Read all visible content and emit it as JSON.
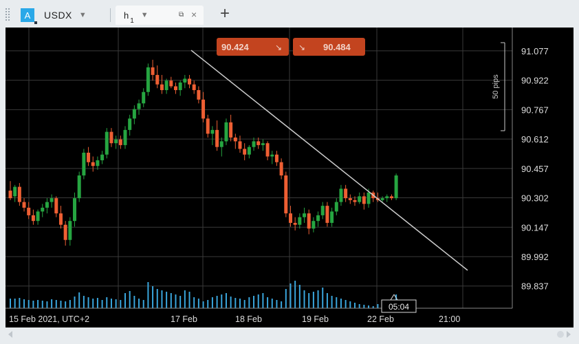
{
  "tabs": {
    "instrument_badge": "A",
    "instrument": "USDX",
    "timeframe": "h",
    "timeframe_sub": "1",
    "add_label": "+"
  },
  "colors": {
    "up": "#26a541",
    "down": "#ee5f33",
    "volume": "#3aa6dd",
    "grid": "#3a3a3a",
    "trendline": "#cccccc",
    "price_box": "#c3441f"
  },
  "prices": {
    "sell": "90.424",
    "buy": "90.484",
    "sell_arrow": "↘",
    "buy_arrow": "↘"
  },
  "crosshair_time": "05:04",
  "pips_label": "50 pips",
  "chart_data": {
    "type": "candlestick",
    "instrument": "USDX",
    "timeframe": "h1",
    "ylim": [
      89.72,
      91.2
    ],
    "y_ticks": [
      "91.077",
      "90.922",
      "90.767",
      "90.612",
      "90.457",
      "90.302",
      "90.147",
      "89.992",
      "89.837"
    ],
    "x_tick_labels": [
      "15 Feb 2021, UTC+2",
      "17 Feb",
      "18 Feb",
      "19 Feb",
      "22 Feb",
      "21:00"
    ],
    "trendline": [
      {
        "bar": 0,
        "price": 91.08
      },
      {
        "bar": 1,
        "price": 89.92
      }
    ],
    "candles": [
      [
        90.34,
        90.39,
        90.29,
        90.3
      ],
      [
        90.31,
        90.37,
        90.28,
        90.36
      ],
      [
        90.36,
        90.38,
        90.26,
        90.28
      ],
      [
        90.28,
        90.3,
        90.23,
        90.25
      ],
      [
        90.25,
        90.28,
        90.19,
        90.21
      ],
      [
        90.21,
        90.24,
        90.16,
        90.18
      ],
      [
        90.18,
        90.24,
        90.16,
        90.23
      ],
      [
        90.23,
        90.27,
        90.2,
        90.25
      ],
      [
        90.25,
        90.3,
        90.22,
        90.28
      ],
      [
        90.28,
        90.32,
        90.25,
        90.3
      ],
      [
        90.3,
        90.31,
        90.2,
        90.22
      ],
      [
        90.22,
        90.26,
        90.14,
        90.16
      ],
      [
        90.16,
        90.18,
        90.05,
        90.08
      ],
      [
        90.08,
        90.2,
        90.05,
        90.18
      ],
      [
        90.18,
        90.33,
        90.15,
        90.3
      ],
      [
        90.3,
        90.44,
        90.28,
        90.42
      ],
      [
        90.42,
        90.56,
        90.4,
        90.54
      ],
      [
        90.54,
        90.57,
        90.47,
        90.49
      ],
      [
        90.49,
        90.52,
        90.44,
        90.47
      ],
      [
        90.47,
        90.52,
        90.45,
        90.5
      ],
      [
        90.5,
        90.55,
        90.48,
        90.53
      ],
      [
        90.53,
        90.67,
        90.51,
        90.65
      ],
      [
        90.65,
        90.67,
        90.57,
        90.59
      ],
      [
        90.59,
        90.63,
        90.56,
        90.61
      ],
      [
        90.61,
        90.63,
        90.56,
        90.58
      ],
      [
        90.58,
        90.68,
        90.56,
        90.66
      ],
      [
        90.66,
        90.74,
        90.63,
        90.72
      ],
      [
        90.72,
        90.79,
        90.69,
        90.77
      ],
      [
        90.77,
        90.82,
        90.74,
        90.8
      ],
      [
        90.8,
        90.88,
        90.78,
        90.86
      ],
      [
        90.86,
        91.01,
        90.84,
        90.99
      ],
      [
        90.99,
        91.03,
        90.92,
        90.95
      ],
      [
        90.95,
        91.0,
        90.88,
        90.9
      ],
      [
        90.9,
        90.95,
        90.85,
        90.87
      ],
      [
        90.87,
        90.93,
        90.85,
        90.92
      ],
      [
        90.92,
        90.94,
        90.88,
        90.89
      ],
      [
        90.89,
        90.91,
        90.85,
        90.87
      ],
      [
        90.87,
        90.92,
        90.84,
        90.91
      ],
      [
        90.91,
        90.95,
        90.88,
        90.93
      ],
      [
        90.93,
        90.95,
        90.88,
        90.9
      ],
      [
        90.9,
        90.92,
        90.85,
        90.87
      ],
      [
        90.87,
        90.89,
        90.8,
        90.82
      ],
      [
        90.82,
        90.86,
        90.7,
        90.72
      ],
      [
        90.72,
        90.74,
        90.62,
        90.64
      ],
      [
        90.64,
        90.68,
        90.58,
        90.66
      ],
      [
        90.66,
        90.71,
        90.55,
        90.57
      ],
      [
        90.57,
        90.62,
        90.52,
        90.6
      ],
      [
        90.6,
        90.72,
        90.58,
        90.7
      ],
      [
        90.7,
        90.74,
        90.6,
        90.62
      ],
      [
        90.62,
        90.64,
        90.56,
        90.6
      ],
      [
        90.6,
        90.63,
        90.54,
        90.56
      ],
      [
        90.56,
        90.59,
        90.5,
        90.53
      ],
      [
        90.53,
        90.58,
        90.51,
        90.57
      ],
      [
        90.57,
        90.62,
        90.55,
        90.6
      ],
      [
        90.6,
        90.62,
        90.56,
        90.58
      ],
      [
        90.58,
        90.61,
        90.55,
        90.59
      ],
      [
        90.59,
        90.6,
        90.5,
        90.52
      ],
      [
        90.52,
        90.55,
        90.48,
        90.53
      ],
      [
        90.53,
        90.55,
        90.47,
        90.49
      ],
      [
        90.49,
        90.51,
        90.4,
        90.42
      ],
      [
        90.42,
        90.44,
        90.2,
        90.22
      ],
      [
        90.22,
        90.26,
        90.15,
        90.17
      ],
      [
        90.17,
        90.2,
        90.13,
        90.16
      ],
      [
        90.16,
        90.22,
        90.14,
        90.2
      ],
      [
        90.2,
        90.25,
        90.17,
        90.22
      ],
      [
        90.22,
        90.24,
        90.11,
        90.14
      ],
      [
        90.14,
        90.2,
        90.12,
        90.18
      ],
      [
        90.18,
        90.23,
        90.15,
        90.21
      ],
      [
        90.21,
        90.28,
        90.19,
        90.26
      ],
      [
        90.26,
        90.28,
        90.15,
        90.17
      ],
      [
        90.17,
        90.25,
        90.15,
        90.23
      ],
      [
        90.23,
        90.3,
        90.21,
        90.28
      ],
      [
        90.28,
        90.37,
        90.26,
        90.35
      ],
      [
        90.35,
        90.37,
        90.28,
        90.3
      ],
      [
        90.3,
        90.32,
        90.27,
        90.29
      ],
      [
        90.29,
        90.31,
        90.26,
        90.28
      ],
      [
        90.28,
        90.33,
        90.27,
        90.31
      ],
      [
        90.31,
        90.33,
        90.24,
        90.27
      ],
      [
        90.27,
        90.35,
        90.25,
        90.33
      ],
      [
        90.33,
        90.34,
        90.28,
        90.3
      ],
      [
        90.3,
        90.33,
        90.28,
        90.29
      ],
      [
        90.29,
        90.31,
        90.28,
        90.3
      ],
      [
        90.3,
        90.32,
        90.28,
        90.31
      ],
      [
        90.31,
        90.32,
        90.29,
        90.3
      ],
      [
        90.3,
        90.43,
        90.29,
        90.42
      ]
    ],
    "volume": [
      14,
      14,
      15,
      13,
      12,
      11,
      12,
      11,
      10,
      13,
      12,
      11,
      10,
      12,
      17,
      23,
      18,
      16,
      14,
      15,
      12,
      16,
      14,
      13,
      12,
      22,
      25,
      18,
      14,
      12,
      38,
      32,
      28,
      26,
      24,
      22,
      20,
      18,
      26,
      24,
      16,
      14,
      10,
      12,
      16,
      18,
      20,
      22,
      17,
      15,
      14,
      12,
      16,
      18,
      20,
      22,
      16,
      14,
      12,
      10,
      28,
      36,
      40,
      34,
      26,
      22,
      24,
      26,
      30,
      22,
      18,
      16,
      14,
      12,
      10,
      8,
      6,
      5,
      4,
      3,
      6,
      5,
      4,
      12,
      20
    ]
  }
}
